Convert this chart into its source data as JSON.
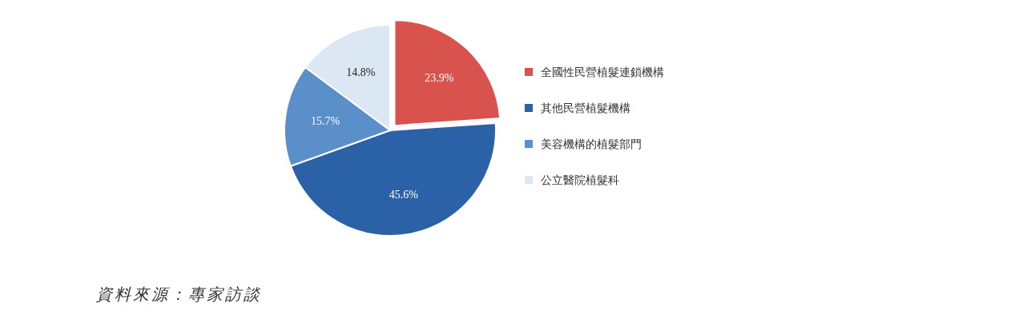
{
  "chart_data": {
    "type": "pie",
    "categories": [
      "全國性民營植髮連鎖機構",
      "其他民營植髮機構",
      "美容機構的植髮部門",
      "公立醫院植髮科"
    ],
    "values": [
      23.9,
      45.6,
      15.7,
      14.8
    ],
    "value_labels": [
      "23.9%",
      "45.6%",
      "15.7%",
      "14.8%"
    ],
    "colors": [
      "#d9534e",
      "#2b62a7",
      "#5b8fc9",
      "#dce7f4"
    ],
    "legend": "right",
    "annotations": [
      "資料來源：專家訪談"
    ]
  }
}
